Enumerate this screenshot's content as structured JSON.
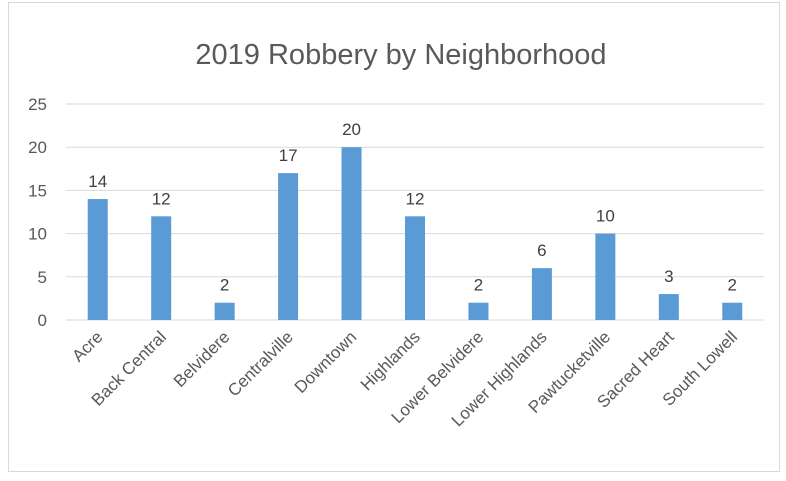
{
  "chart_data": {
    "type": "bar",
    "title": "2019 Robbery by Neighborhood",
    "categories": [
      "Acre",
      "Back Central",
      "Belvidere",
      "Centralville",
      "Downtown",
      "Highlands",
      "Lower Belvidere",
      "Lower Highlands",
      "Pawtucketville",
      "Sacred Heart",
      "South Lowell"
    ],
    "values": [
      14,
      12,
      2,
      17,
      20,
      12,
      2,
      6,
      10,
      3,
      2
    ],
    "ylim": [
      0,
      25
    ],
    "yticks": [
      0,
      5,
      10,
      15,
      20,
      25
    ],
    "xlabel": "",
    "ylabel": "",
    "grid": true,
    "data_labels": true,
    "legend": "none",
    "colors": {
      "bar": "#5b9bd5",
      "grid": "#d9d9d9",
      "text": "#595959"
    }
  }
}
